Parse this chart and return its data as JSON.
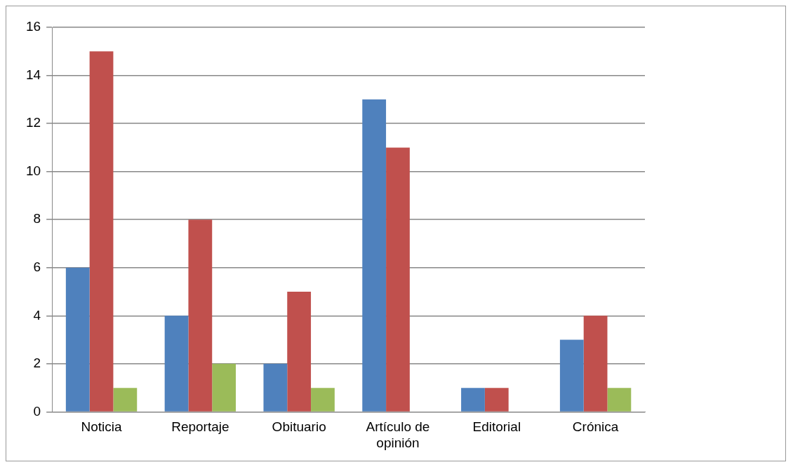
{
  "chart_data": {
    "type": "bar",
    "categories": [
      "Noticia",
      "Reportaje",
      "Obituario",
      "Artículo de opinión",
      "Editorial",
      "Crónica"
    ],
    "series": [
      {
        "color": "#4f81bd",
        "values": [
          6,
          4,
          2,
          13,
          1,
          3
        ]
      },
      {
        "color": "#c0504d",
        "values": [
          15,
          8,
          5,
          11,
          1,
          4
        ]
      },
      {
        "color": "#9bbb59",
        "values": [
          1,
          2,
          1,
          0,
          0,
          1
        ]
      }
    ],
    "ylim": [
      0,
      16
    ],
    "yticks": [
      0,
      2,
      4,
      6,
      8,
      10,
      12,
      14,
      16
    ],
    "grid": "y"
  }
}
